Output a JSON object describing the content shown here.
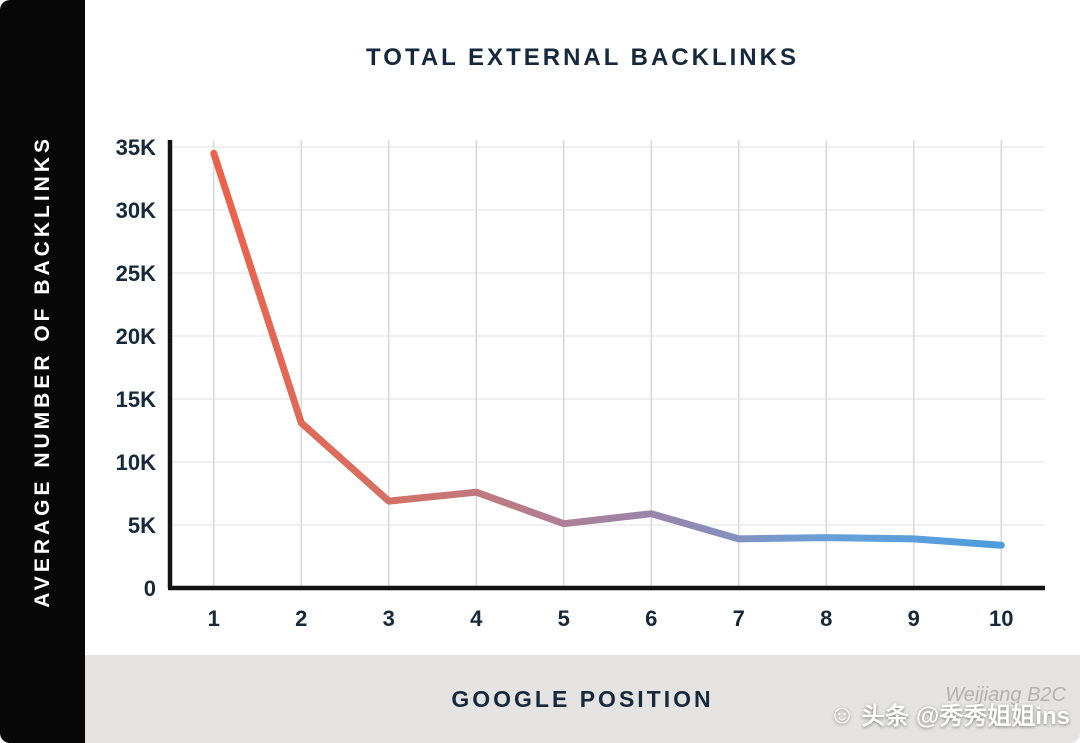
{
  "chart_data": {
    "type": "line",
    "title": "TOTAL EXTERNAL BACKLINKS",
    "xlabel": "GOOGLE POSITION",
    "ylabel": "AVERAGE NUMBER OF BACKLINKS",
    "categories": [
      "1",
      "2",
      "3",
      "4",
      "5",
      "6",
      "7",
      "8",
      "9",
      "10"
    ],
    "values": [
      34500,
      13100,
      6900,
      7600,
      5100,
      5900,
      3900,
      4000,
      3900,
      3400
    ],
    "ylim": [
      0,
      35000
    ],
    "y_ticks": [
      {
        "value": 35000,
        "label": "35K"
      },
      {
        "value": 30000,
        "label": "30K"
      },
      {
        "value": 25000,
        "label": "25K"
      },
      {
        "value": 20000,
        "label": "20K"
      },
      {
        "value": 15000,
        "label": "15K"
      },
      {
        "value": 10000,
        "label": "10K"
      },
      {
        "value": 5000,
        "label": "5K"
      },
      {
        "value": 0,
        "label": "0"
      }
    ],
    "grid": true,
    "legend": "none",
    "axis_color": "#131313",
    "label_color": "#16283c",
    "line_gradient": [
      {
        "offset": 0,
        "color": "#ec614a"
      },
      {
        "offset": 0.2,
        "color": "#d76f60"
      },
      {
        "offset": 0.42,
        "color": "#b37e90"
      },
      {
        "offset": 0.6,
        "color": "#9189b4"
      },
      {
        "offset": 0.78,
        "color": "#68a0d8"
      },
      {
        "offset": 1,
        "color": "#4c9cdc"
      }
    ]
  },
  "watermark": {
    "faded_text": "Weijiang B2C",
    "icon": "smiley-face",
    "text": "头条 @秀秀姐姐ins"
  }
}
